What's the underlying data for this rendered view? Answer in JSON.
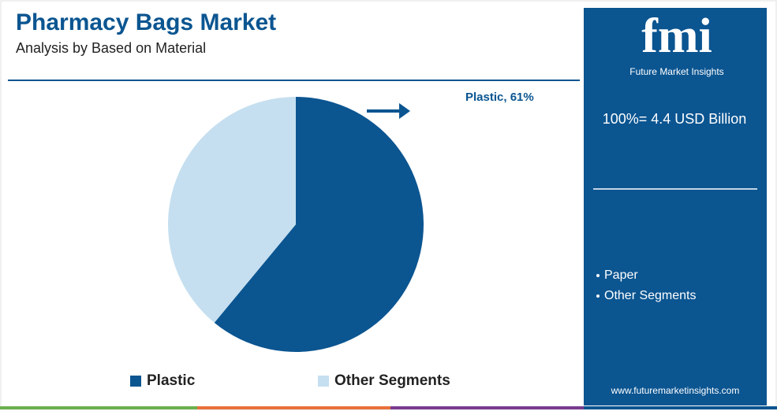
{
  "chart_data": {
    "type": "pie",
    "title": "Pharmacy Bags Market",
    "subtitle": "Analysis by Based on Material",
    "categories": [
      "Plastic",
      "Other Segments"
    ],
    "values": [
      61,
      39
    ],
    "colors": [
      "#0b5591",
      "#c5dff0"
    ],
    "annotation": "Plastic, 61%"
  },
  "side_panel": {
    "logo": "fmi",
    "brand": "Future Market Insights",
    "total": "100%= 4.4 USD Billion",
    "list": [
      "Paper",
      "Other Segments"
    ],
    "url": "www.futuremarketinsights.com"
  }
}
